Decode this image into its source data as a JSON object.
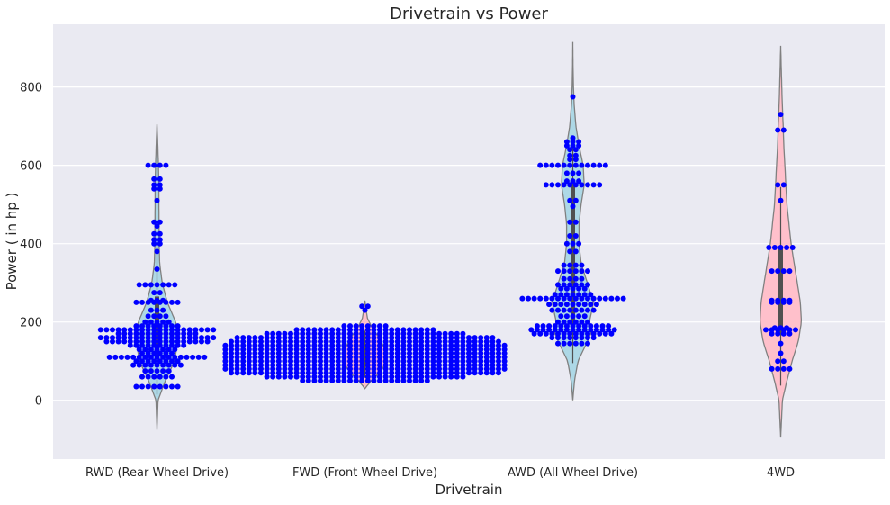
{
  "chart_data": {
    "type": "violin+swarm",
    "title": "Drivetrain vs Power",
    "xlabel": "Drivetrain",
    "ylabel": "Power ( in hp )",
    "ylim": [
      -150,
      960
    ],
    "yticks": [
      0,
      200,
      400,
      600,
      800
    ],
    "grid": true,
    "legend": "none",
    "colors": {
      "background": "#EAEAF2",
      "grid": "#FFFFFF",
      "violin_stroke": "#808080",
      "point": "#0000FF",
      "box": "#505050"
    },
    "categories": [
      "RWD (Rear Wheel Drive)",
      "FWD (Front Wheel Drive)",
      "AWD (All Wheel Drive)",
      "4WD"
    ],
    "series": [
      {
        "fill": "#ADD8E6",
        "range": [
          -75,
          705
        ],
        "q1": 105,
        "median": 170,
        "q3": 265,
        "density": [
          [
            -75,
            0
          ],
          [
            0,
            0.05
          ],
          [
            50,
            0.4
          ],
          [
            100,
            0.85
          ],
          [
            150,
            1.0
          ],
          [
            175,
            1.0
          ],
          [
            200,
            0.9
          ],
          [
            250,
            0.5
          ],
          [
            300,
            0.25
          ],
          [
            350,
            0.13
          ],
          [
            400,
            0.1
          ],
          [
            450,
            0.1
          ],
          [
            500,
            0.09
          ],
          [
            550,
            0.09
          ],
          [
            600,
            0.07
          ],
          [
            650,
            0.04
          ],
          [
            705,
            0
          ]
        ],
        "points": [
          {
            "y": 35,
            "n": 8
          },
          {
            "y": 60,
            "n": 6
          },
          {
            "y": 75,
            "n": 5
          },
          {
            "y": 90,
            "n": 9
          },
          {
            "y": 100,
            "n": 8
          },
          {
            "y": 110,
            "n": 17
          },
          {
            "y": 120,
            "n": 6
          },
          {
            "y": 130,
            "n": 7
          },
          {
            "y": 140,
            "n": 10
          },
          {
            "y": 150,
            "n": 18
          },
          {
            "y": 160,
            "n": 20
          },
          {
            "y": 170,
            "n": 14
          },
          {
            "y": 180,
            "n": 20
          },
          {
            "y": 190,
            "n": 8
          },
          {
            "y": 200,
            "n": 5
          },
          {
            "y": 215,
            "n": 4
          },
          {
            "y": 230,
            "n": 3
          },
          {
            "y": 250,
            "n": 8
          },
          {
            "y": 255,
            "n": 3
          },
          {
            "y": 275,
            "n": 2
          },
          {
            "y": 295,
            "n": 7
          },
          {
            "y": 335,
            "n": 1
          },
          {
            "y": 380,
            "n": 1
          },
          {
            "y": 400,
            "n": 2
          },
          {
            "y": 410,
            "n": 2
          },
          {
            "y": 425,
            "n": 2
          },
          {
            "y": 445,
            "n": 1
          },
          {
            "y": 455,
            "n": 2
          },
          {
            "y": 510,
            "n": 1
          },
          {
            "y": 540,
            "n": 2
          },
          {
            "y": 550,
            "n": 2
          },
          {
            "y": 565,
            "n": 2
          },
          {
            "y": 600,
            "n": 4
          }
        ]
      },
      {
        "fill": "#FFC0CB",
        "range": [
          30,
          255
        ],
        "q1": 85,
        "median": 115,
        "q3": 145,
        "density": [
          [
            30,
            0
          ],
          [
            50,
            0.3
          ],
          [
            70,
            0.7
          ],
          [
            90,
            0.95
          ],
          [
            110,
            1.0
          ],
          [
            130,
            0.95
          ],
          [
            150,
            0.8
          ],
          [
            170,
            0.55
          ],
          [
            190,
            0.3
          ],
          [
            210,
            0.12
          ],
          [
            230,
            0.06
          ],
          [
            255,
            0
          ]
        ],
        "points": [
          {
            "y": 50,
            "n": 22
          },
          {
            "y": 60,
            "n": 34
          },
          {
            "y": 70,
            "n": 46
          },
          {
            "y": 80,
            "n": 48
          },
          {
            "y": 90,
            "n": 48
          },
          {
            "y": 100,
            "n": 48
          },
          {
            "y": 110,
            "n": 48
          },
          {
            "y": 120,
            "n": 48
          },
          {
            "y": 130,
            "n": 48
          },
          {
            "y": 140,
            "n": 48
          },
          {
            "y": 150,
            "n": 46
          },
          {
            "y": 160,
            "n": 44
          },
          {
            "y": 170,
            "n": 34
          },
          {
            "y": 180,
            "n": 24
          },
          {
            "y": 190,
            "n": 8
          },
          {
            "y": 230,
            "n": 1
          },
          {
            "y": 240,
            "n": 2
          }
        ]
      },
      {
        "fill": "#ADD8E6",
        "range": [
          0,
          915
        ],
        "q1": 190,
        "median": 270,
        "q3": 550,
        "density": [
          [
            0,
            0
          ],
          [
            50,
            0.08
          ],
          [
            100,
            0.25
          ],
          [
            150,
            0.7
          ],
          [
            175,
            0.9
          ],
          [
            200,
            0.8
          ],
          [
            250,
            1.0
          ],
          [
            300,
            0.7
          ],
          [
            350,
            0.4
          ],
          [
            400,
            0.3
          ],
          [
            450,
            0.3
          ],
          [
            500,
            0.4
          ],
          [
            550,
            0.55
          ],
          [
            600,
            0.5
          ],
          [
            650,
            0.3
          ],
          [
            700,
            0.15
          ],
          [
            750,
            0.07
          ],
          [
            800,
            0.03
          ],
          [
            850,
            0.01
          ],
          [
            915,
            0
          ]
        ],
        "points": [
          {
            "y": 145,
            "n": 6
          },
          {
            "y": 160,
            "n": 8
          },
          {
            "y": 170,
            "n": 14
          },
          {
            "y": 180,
            "n": 15
          },
          {
            "y": 190,
            "n": 13
          },
          {
            "y": 200,
            "n": 6
          },
          {
            "y": 215,
            "n": 5
          },
          {
            "y": 230,
            "n": 8
          },
          {
            "y": 245,
            "n": 9
          },
          {
            "y": 260,
            "n": 18
          },
          {
            "y": 270,
            "n": 7
          },
          {
            "y": 285,
            "n": 5
          },
          {
            "y": 295,
            "n": 6
          },
          {
            "y": 310,
            "n": 4
          },
          {
            "y": 330,
            "n": 6
          },
          {
            "y": 345,
            "n": 4
          },
          {
            "y": 380,
            "n": 2
          },
          {
            "y": 400,
            "n": 3
          },
          {
            "y": 420,
            "n": 2
          },
          {
            "y": 455,
            "n": 2
          },
          {
            "y": 495,
            "n": 1
          },
          {
            "y": 510,
            "n": 2
          },
          {
            "y": 550,
            "n": 10
          },
          {
            "y": 560,
            "n": 3
          },
          {
            "y": 580,
            "n": 3
          },
          {
            "y": 600,
            "n": 12
          },
          {
            "y": 615,
            "n": 2
          },
          {
            "y": 625,
            "n": 2
          },
          {
            "y": 640,
            "n": 2
          },
          {
            "y": 650,
            "n": 3
          },
          {
            "y": 660,
            "n": 3
          },
          {
            "y": 670,
            "n": 1
          },
          {
            "y": 775,
            "n": 1
          }
        ]
      },
      {
        "fill": "#FFC0CB",
        "range": [
          -95,
          905
        ],
        "q1": 170,
        "median": 250,
        "q3": 390,
        "density": [
          [
            -95,
            0
          ],
          [
            0,
            0.08
          ],
          [
            50,
            0.3
          ],
          [
            100,
            0.55
          ],
          [
            150,
            0.85
          ],
          [
            200,
            1.0
          ],
          [
            250,
            0.95
          ],
          [
            300,
            0.8
          ],
          [
            350,
            0.65
          ],
          [
            400,
            0.5
          ],
          [
            450,
            0.4
          ],
          [
            500,
            0.3
          ],
          [
            550,
            0.25
          ],
          [
            600,
            0.2
          ],
          [
            650,
            0.15
          ],
          [
            700,
            0.12
          ],
          [
            750,
            0.08
          ],
          [
            800,
            0.05
          ],
          [
            905,
            0
          ]
        ],
        "points": [
          {
            "y": 80,
            "n": 4
          },
          {
            "y": 100,
            "n": 2
          },
          {
            "y": 120,
            "n": 1
          },
          {
            "y": 145,
            "n": 1
          },
          {
            "y": 170,
            "n": 4
          },
          {
            "y": 180,
            "n": 6
          },
          {
            "y": 185,
            "n": 3
          },
          {
            "y": 250,
            "n": 4
          },
          {
            "y": 255,
            "n": 4
          },
          {
            "y": 330,
            "n": 4
          },
          {
            "y": 390,
            "n": 5
          },
          {
            "y": 510,
            "n": 1
          },
          {
            "y": 550,
            "n": 2
          },
          {
            "y": 690,
            "n": 2
          },
          {
            "y": 730,
            "n": 1
          }
        ]
      }
    ]
  }
}
